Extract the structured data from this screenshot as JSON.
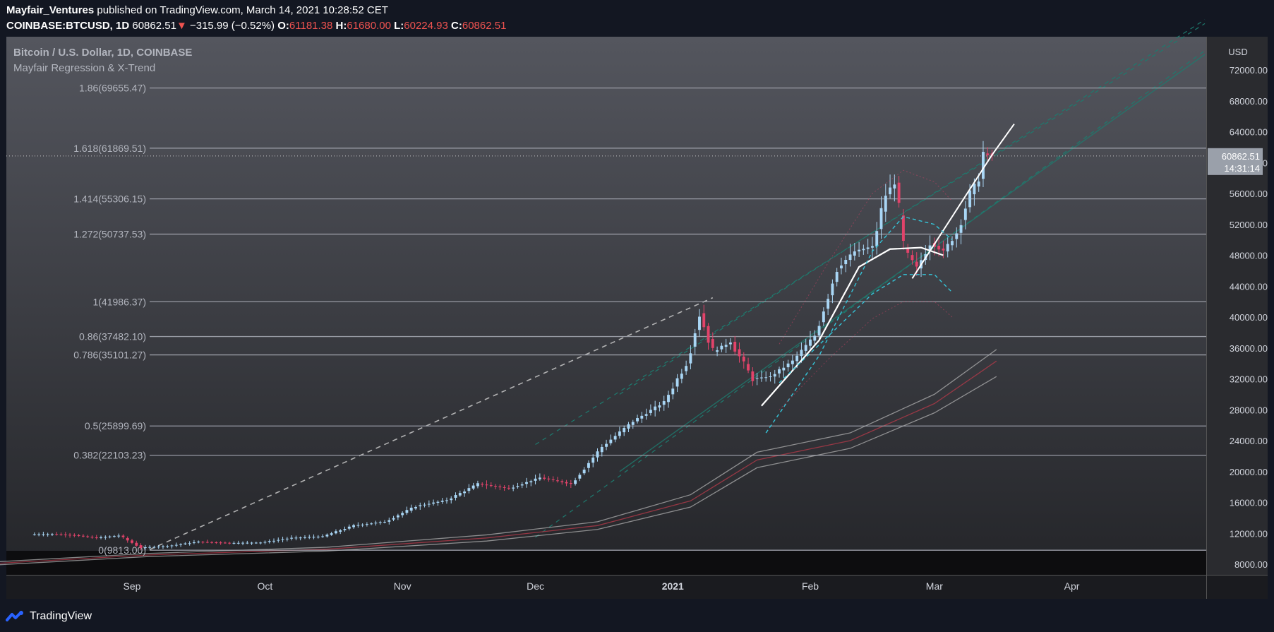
{
  "header": {
    "author": "Mayfair_Ventures",
    "published_text": "published on TradingView.com, March 14, 2021 10:28:52 CET"
  },
  "ohlc_bar": {
    "symbol": "COINBASE:BTCUSD, 1D",
    "last": "60862.51",
    "change": "−315.99 (−0.52%)",
    "o_label": "O:",
    "o": "61181.38",
    "h_label": "H:",
    "h": "61680.00",
    "l_label": "L:",
    "l": "60224.93",
    "c_label": "C:",
    "c": "60862.51",
    "down_arrow": "▼"
  },
  "legend": {
    "title": "Bitcoin / U.S. Dollar, 1D, COINBASE",
    "indicator": "Mayfair Regression & X-Trend"
  },
  "footer": {
    "brand": "TradingView",
    "logo_icon": "tradingview-logo-icon"
  },
  "colors": {
    "background": "#131722",
    "up_candle": "#a9d6f5",
    "down_candle": "#e2436a",
    "fib_line": "#a3a6af",
    "last_price_bg": "#9aa0aa",
    "regression_white": "#ffffff",
    "xtrend_dashed": "#35c4d8",
    "channel_teal": "#1e7a6e"
  },
  "chart_data": {
    "type": "candlestick",
    "currency": "USD",
    "y_axis_ticks": [
      "72000.00",
      "68000.00",
      "64000.00",
      "60000.00",
      "56000.00",
      "52000.00",
      "48000.00",
      "44000.00",
      "40000.00",
      "36000.00",
      "32000.00",
      "28000.00",
      "24000.00",
      "20000.00",
      "16000.00",
      "12000.00",
      "8000.00"
    ],
    "x_axis_ticks": [
      "Sep",
      "Oct",
      "Nov",
      "Dec",
      "2021",
      "Feb",
      "Mar",
      "Apr"
    ],
    "x_axis_bold": "2021",
    "fib_levels": [
      {
        "label": "1.86(69655.47)",
        "value": 69655.47
      },
      {
        "label": "1.618(61869.51)",
        "value": 61869.51
      },
      {
        "label": "1.414(55306.15)",
        "value": 55306.15
      },
      {
        "label": "1.272(50737.53)",
        "value": 50737.53
      },
      {
        "label": "1(41986.37)",
        "value": 41986.37
      },
      {
        "label": "0.86(37482.10)",
        "value": 37482.1
      },
      {
        "label": "0.786(35101.27)",
        "value": 35101.27
      },
      {
        "label": "0.5(25899.69)",
        "value": 25899.69
      },
      {
        "label": "0.382(22103.23)",
        "value": 22103.23
      },
      {
        "label": "0(9813.00)",
        "value": 9813.0
      }
    ],
    "last_price": {
      "value": 60862.51,
      "label": "60862.51",
      "countdown": "14:31:14"
    },
    "ohlc_by_date": {
      "2020-08-10": [
        11600,
        11900,
        11400,
        11850
      ],
      "2020-08-15": [
        11850,
        12000,
        11700,
        11900
      ],
      "2020-08-20": [
        11900,
        12100,
        11600,
        11750
      ],
      "2020-08-25": [
        11750,
        11900,
        11200,
        11400
      ],
      "2020-08-30": [
        11400,
        11800,
        11300,
        11700
      ],
      "2020-09-04": [
        11700,
        11750,
        9950,
        10150
      ],
      "2020-09-10": [
        10150,
        10450,
        10050,
        10350
      ],
      "2020-09-17": [
        10350,
        11000,
        10250,
        10900
      ],
      "2020-09-24": [
        10900,
        11000,
        10300,
        10750
      ],
      "2020-10-01": [
        10750,
        10950,
        10600,
        10800
      ],
      "2020-10-08": [
        10800,
        11500,
        10700,
        11400
      ],
      "2020-10-15": [
        11400,
        11750,
        11300,
        11600
      ],
      "2020-10-22": [
        11600,
        13200,
        11550,
        13000
      ],
      "2020-10-29": [
        13000,
        13850,
        12900,
        13500
      ],
      "2020-11-05": [
        13500,
        15700,
        13400,
        15500
      ],
      "2020-11-12": [
        15500,
        16400,
        15200,
        16300
      ],
      "2020-11-19": [
        16300,
        18800,
        16100,
        18400
      ],
      "2020-11-26": [
        18400,
        19200,
        16300,
        17800
      ],
      "2020-12-03": [
        17800,
        19300,
        17600,
        19200
      ],
      "2020-12-10": [
        19200,
        19400,
        17700,
        18400
      ],
      "2020-12-17": [
        18400,
        23800,
        18300,
        23200
      ],
      "2020-12-24": [
        23200,
        26900,
        22700,
        26500
      ],
      "2020-12-31": [
        26500,
        29300,
        26200,
        29000
      ],
      "2021-01-05": [
        29000,
        34800,
        28700,
        34000
      ],
      "2021-01-08": [
        34000,
        41900,
        33800,
        40500
      ],
      "2021-01-11": [
        40500,
        40800,
        30400,
        35500
      ],
      "2021-01-15": [
        35500,
        39600,
        34500,
        36800
      ],
      "2021-01-20": [
        36800,
        37800,
        30000,
        32000
      ],
      "2021-01-24": [
        32000,
        34000,
        29200,
        32300
      ],
      "2021-01-29": [
        32300,
        38200,
        31000,
        34300
      ],
      "2021-02-03": [
        34300,
        38000,
        33300,
        37600
      ],
      "2021-02-08": [
        37600,
        47200,
        37400,
        46300
      ],
      "2021-02-12": [
        46300,
        49200,
        44100,
        48500
      ],
      "2021-02-16": [
        48500,
        50600,
        47100,
        49150
      ],
      "2021-02-19": [
        49150,
        57000,
        48000,
        55900
      ],
      "2021-02-21": [
        55900,
        58350,
        54000,
        57400
      ],
      "2021-02-23": [
        57400,
        57500,
        45100,
        48900
      ],
      "2021-02-26": [
        48900,
        49400,
        44100,
        46300
      ],
      "2021-03-01": [
        46300,
        49800,
        45000,
        49600
      ],
      "2021-03-04": [
        49600,
        51700,
        47300,
        48500
      ],
      "2021-03-07": [
        48500,
        51300,
        47800,
        50900
      ],
      "2021-03-10": [
        50900,
        57300,
        50600,
        55900
      ],
      "2021-03-12": [
        55900,
        58000,
        55000,
        57900
      ],
      "2021-03-13": [
        57900,
        61680,
        56100,
        61180
      ],
      "2021-03-14": [
        61181.38,
        61680.0,
        60224.93,
        60862.51
      ]
    }
  }
}
